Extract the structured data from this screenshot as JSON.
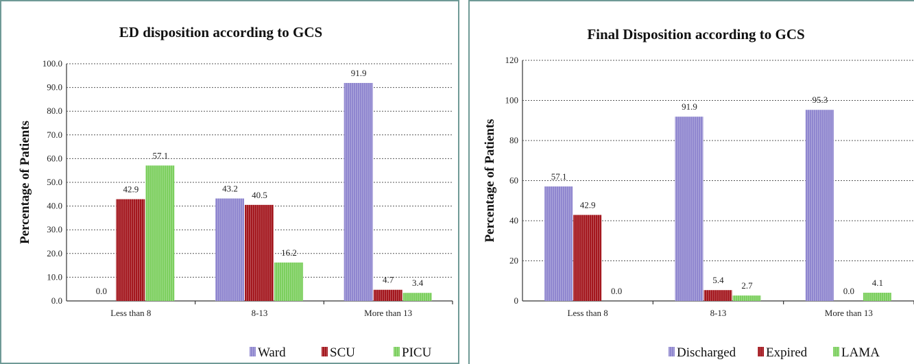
{
  "chart_data": [
    {
      "type": "bar",
      "title": "ED disposition according to GCS",
      "ylabel": "Percentage of Patients",
      "xlabel": "",
      "categories": [
        "Less than 8",
        "8-13",
        "More than 13"
      ],
      "series": [
        {
          "name": "Ward",
          "values": [
            0.0,
            43.2,
            91.9
          ],
          "labels": [
            "0.0",
            "43.2",
            "91.9"
          ]
        },
        {
          "name": "SCU",
          "values": [
            42.9,
            40.5,
            4.7
          ],
          "labels": [
            "42.9",
            "40.5",
            "4.7"
          ]
        },
        {
          "name": "PICU",
          "values": [
            57.1,
            16.2,
            3.4
          ],
          "labels": [
            "57.1",
            "16.2",
            "3.4"
          ]
        }
      ],
      "ylim": [
        0,
        100
      ],
      "yticks": [
        "0.0",
        "10.0",
        "20.0",
        "30.0",
        "40.0",
        "50.0",
        "60.0",
        "70.0",
        "80.0",
        "90.0",
        "100.0"
      ],
      "grid": true,
      "legend": "bottom-right"
    },
    {
      "type": "bar",
      "title": "Final Disposition according to GCS",
      "ylabel": "Percentage of Patients",
      "xlabel": "",
      "categories": [
        "Less than 8",
        "8-13",
        "More than 13"
      ],
      "series": [
        {
          "name": "Discharged",
          "values": [
            57.1,
            91.9,
            95.3
          ],
          "labels": [
            "57.1",
            "91.9",
            "95.3"
          ]
        },
        {
          "name": "Expired",
          "values": [
            42.9,
            5.4,
            0.0
          ],
          "labels": [
            "42.9",
            "5.4",
            "0.0"
          ]
        },
        {
          "name": "LAMA",
          "values": [
            0.0,
            2.7,
            4.1
          ],
          "labels": [
            "0.0",
            "2.7",
            "4.1"
          ]
        }
      ],
      "ylim": [
        0,
        120
      ],
      "yticks": [
        "0",
        "20",
        "40",
        "60",
        "80",
        "100",
        "120"
      ],
      "grid": true,
      "legend": "bottom-right"
    }
  ],
  "colors": {
    "series1": "#8f86cf",
    "series2": "#a3161d",
    "series3": "#7ccf5e",
    "border": "#6f9a96"
  }
}
